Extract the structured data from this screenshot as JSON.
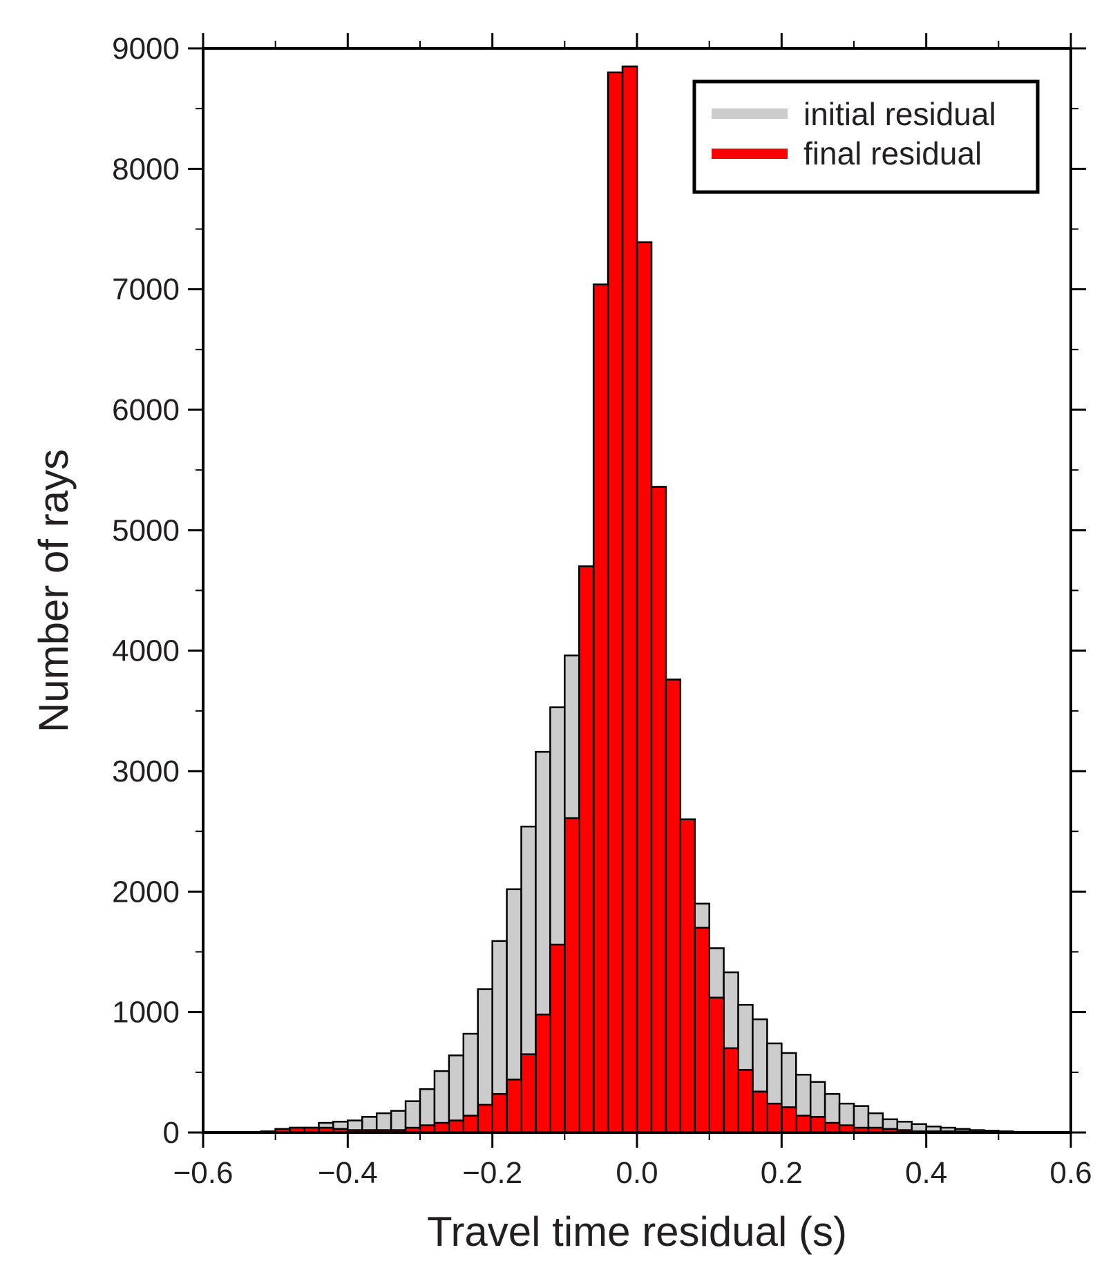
{
  "chart_data": {
    "type": "bar",
    "title": "",
    "xlabel": "Travel time residual (s)",
    "ylabel": "Number of rays",
    "xlim": [
      -0.6,
      0.6
    ],
    "ylim": [
      0,
      9000
    ],
    "xticks": [
      -0.6,
      -0.4,
      -0.2,
      0.0,
      0.2,
      0.4,
      0.6
    ],
    "xtick_labels": [
      "−0.6",
      "−0.4",
      "−0.2",
      "0.0",
      "0.2",
      "0.4",
      "0.6"
    ],
    "yticks": [
      0,
      1000,
      2000,
      3000,
      4000,
      5000,
      6000,
      7000,
      8000,
      9000
    ],
    "ytick_labels": [
      "0",
      "1000",
      "2000",
      "3000",
      "4000",
      "5000",
      "6000",
      "7000",
      "8000",
      "9000"
    ],
    "bin_width": 0.02,
    "grid": false,
    "legend_position": "top-right",
    "bin_centers": [
      -0.51,
      -0.49,
      -0.47,
      -0.45,
      -0.43,
      -0.41,
      -0.39,
      -0.37,
      -0.35,
      -0.33,
      -0.31,
      -0.29,
      -0.27,
      -0.25,
      -0.23,
      -0.21,
      -0.19,
      -0.17,
      -0.15,
      -0.13,
      -0.11,
      -0.09,
      -0.07,
      -0.05,
      -0.03,
      -0.01,
      0.01,
      0.03,
      0.05,
      0.07,
      0.09,
      0.11,
      0.13,
      0.15,
      0.17,
      0.19,
      0.21,
      0.23,
      0.25,
      0.27,
      0.29,
      0.31,
      0.33,
      0.35,
      0.37,
      0.39,
      0.41,
      0.43,
      0.45,
      0.47,
      0.49,
      0.51,
      0.53
    ],
    "series": [
      {
        "name": "initial residual",
        "color": "#cccccc",
        "values": [
          10,
          30,
          40,
          40,
          80,
          90,
          100,
          130,
          160,
          180,
          260,
          360,
          510,
          640,
          820,
          1190,
          1590,
          2020,
          2540,
          3160,
          3530,
          3960,
          4700,
          7040,
          8800,
          8850,
          7390,
          5360,
          3760,
          2600,
          1900,
          1530,
          1330,
          1060,
          940,
          740,
          660,
          480,
          420,
          320,
          240,
          220,
          160,
          110,
          90,
          70,
          50,
          40,
          30,
          20,
          15,
          10,
          5
        ]
      },
      {
        "name": "final residual",
        "color": "#ff0000",
        "values": [
          10,
          30,
          40,
          40,
          40,
          30,
          20,
          20,
          20,
          20,
          40,
          60,
          80,
          100,
          140,
          230,
          320,
          440,
          650,
          980,
          1560,
          2610,
          4700,
          7040,
          8800,
          8850,
          7390,
          5360,
          3760,
          2600,
          1700,
          1120,
          700,
          520,
          340,
          240,
          210,
          140,
          130,
          80,
          60,
          40,
          40,
          30,
          20,
          10,
          10,
          10,
          10,
          5,
          5,
          0,
          0
        ]
      }
    ]
  }
}
